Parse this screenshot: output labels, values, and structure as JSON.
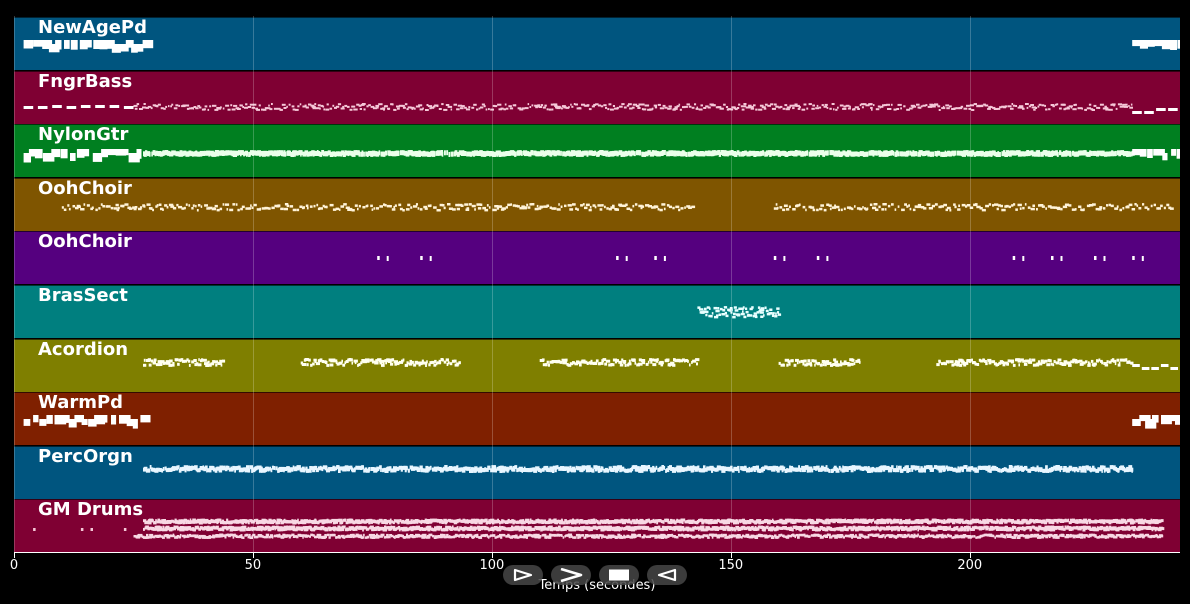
{
  "tracks": [
    {
      "name": "NewAgePd",
      "color": "#00557f",
      "pattern": "ends-chunky"
    },
    {
      "name": "FngrBass",
      "color": "#7f0033",
      "pattern": "bass"
    },
    {
      "name": "NylonGtr",
      "color": "#007f20",
      "pattern": "dense-chunky"
    },
    {
      "name": "OohChoir",
      "color": "#7f5500",
      "pattern": "choir1"
    },
    {
      "name": "OohChoir",
      "color": "#55007f",
      "pattern": "choir2"
    },
    {
      "name": "BrasSect",
      "color": "#007f7f",
      "pattern": "brass"
    },
    {
      "name": "Acordion",
      "color": "#7f7f00",
      "pattern": "accordion"
    },
    {
      "name": "WarmPd",
      "color": "#7f2000",
      "pattern": "ends-chunky"
    },
    {
      "name": "PercOrgn",
      "color": "#00557f",
      "pattern": "organ"
    },
    {
      "name": "GM Drums",
      "color": "#7f0033",
      "pattern": "drums"
    }
  ],
  "axis": {
    "label": "Temps (secondes)",
    "xmin": 0,
    "xmax": 244,
    "ticks": [
      0,
      50,
      100,
      150,
      200
    ],
    "tick_labels": [
      "0",
      "50",
      "100",
      "150",
      "200"
    ]
  },
  "controls": [
    {
      "name": "play-icon",
      "action": "play"
    },
    {
      "name": "fast-forward-icon",
      "action": "forward"
    },
    {
      "name": "stop-icon",
      "action": "stop"
    },
    {
      "name": "rewind-icon",
      "action": "rewind"
    }
  ]
}
